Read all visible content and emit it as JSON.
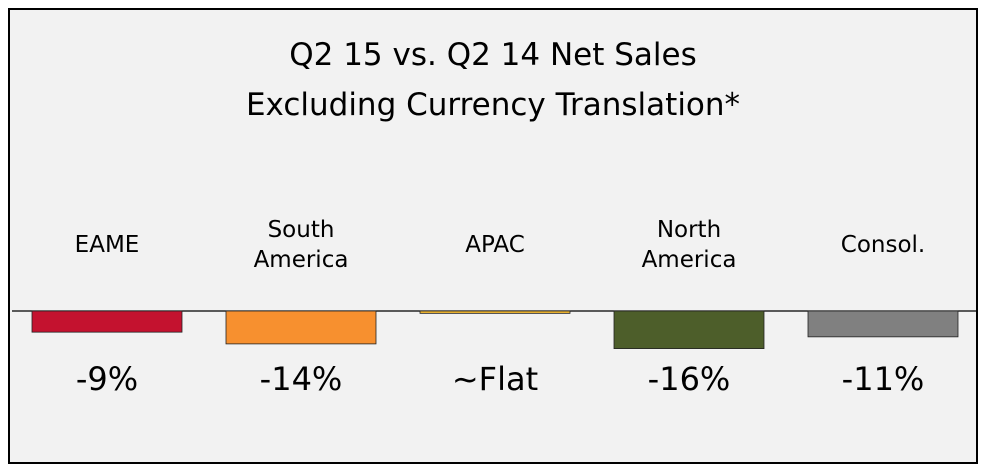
{
  "chart_data": {
    "type": "bar",
    "title": "Q2 15 vs. Q2 14 Net Sales\nExcluding Currency Translation*",
    "categories": [
      "EAME",
      "South America",
      "APAC",
      "North America",
      "Consol."
    ],
    "values": [
      -9,
      -14,
      -1,
      -16,
      -11
    ],
    "value_labels": [
      "-9%",
      "-14%",
      "~Flat",
      "-16%",
      "-11%"
    ],
    "colors": [
      "#c4122f",
      "#f7902f",
      "#f2b830",
      "#4d5e2a",
      "#808080"
    ]
  }
}
